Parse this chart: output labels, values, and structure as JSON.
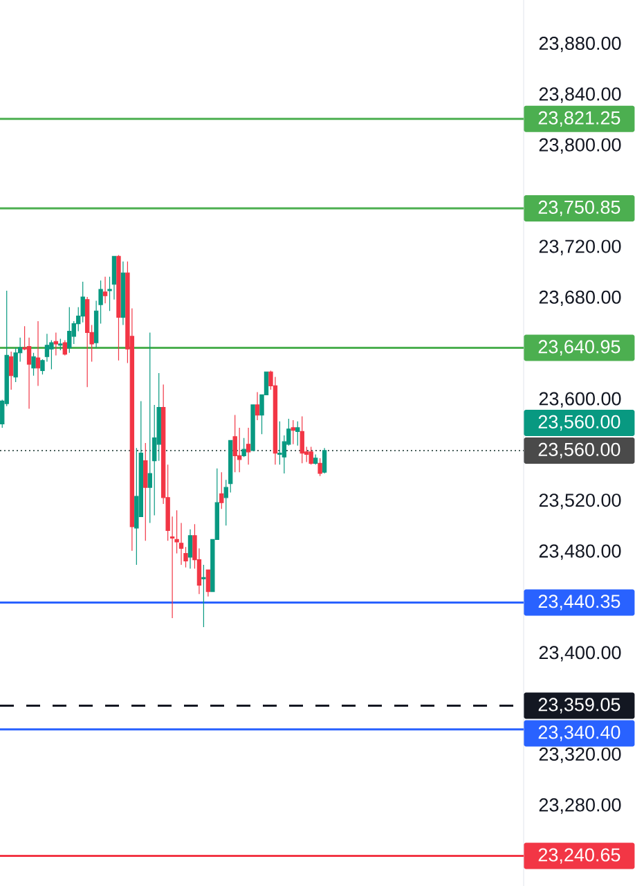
{
  "chart_data": {
    "type": "candlestick",
    "categories": [
      null,
      null,
      null,
      null,
      null,
      null,
      null,
      null,
      null,
      null,
      null,
      null,
      null,
      null,
      null,
      null,
      null,
      null,
      null,
      null,
      null,
      null,
      null,
      null,
      null,
      null,
      null,
      null,
      null,
      null,
      null,
      null,
      null,
      null,
      null,
      null,
      null,
      null,
      null,
      null,
      null,
      null,
      null,
      null,
      null,
      null,
      null,
      null,
      null,
      null,
      null,
      null,
      null,
      null,
      null,
      null,
      null,
      null,
      null,
      null,
      null,
      null,
      null,
      null,
      null,
      null,
      null,
      null,
      null,
      null,
      null,
      null,
      null,
      null,
      null,
      null,
      null,
      null,
      null,
      null,
      null,
      null,
      null,
      null,
      null,
      null,
      null,
      null,
      null,
      null,
      null,
      null,
      null,
      null,
      null,
      null,
      null,
      null,
      null,
      null,
      null,
      null,
      null,
      null,
      null,
      null,
      null,
      null,
      null,
      null,
      null,
      null,
      null,
      null,
      null,
      null,
      null
    ],
    "ohlc": [
      [
        23581,
        23600,
        23578,
        23599
      ],
      [
        23597,
        23686,
        23595,
        23635
      ],
      [
        23634,
        23638,
        23608,
        23619
      ],
      [
        23618,
        23641,
        23614,
        23637
      ],
      [
        23637,
        23649,
        23630,
        23641
      ],
      [
        23641,
        23658,
        23639,
        23640
      ],
      [
        23642,
        23649,
        23593,
        23628
      ],
      [
        23625,
        23637,
        23619,
        23634
      ],
      [
        23633,
        23662,
        23611,
        23625
      ],
      [
        23623,
        23632,
        23620,
        23631
      ],
      [
        23634,
        23652,
        23630,
        23643
      ],
      [
        23640,
        23647,
        23624,
        23645
      ],
      [
        23646,
        23653,
        23635,
        23644
      ],
      [
        23643,
        23648,
        23639,
        23644
      ],
      [
        23645,
        23647,
        23635,
        23636
      ],
      [
        23641,
        23673,
        23637,
        23654
      ],
      [
        23650,
        23662,
        23644,
        23660
      ],
      [
        23660,
        23673,
        23654,
        23666
      ],
      [
        23666,
        23693,
        23661,
        23681
      ],
      [
        23679,
        23681,
        23610,
        23653
      ],
      [
        23653,
        23659,
        23630,
        23644
      ],
      [
        23645,
        23678,
        23641,
        23670
      ],
      [
        23675,
        23694,
        23660,
        23687
      ],
      [
        23685,
        23697,
        23676,
        23682
      ],
      [
        23686,
        23697,
        23670,
        23687
      ],
      [
        23691,
        23713,
        23679,
        23713
      ],
      [
        23713,
        23714,
        23631,
        23665
      ],
      [
        23665,
        23709,
        23659,
        23700
      ],
      [
        23700,
        23709,
        23629,
        23640
      ],
      [
        23650,
        23672,
        23481,
        23500
      ],
      [
        23499,
        23562,
        23470,
        23524
      ],
      [
        23508,
        23599,
        23508,
        23558
      ],
      [
        23552,
        23566,
        23489,
        23531
      ],
      [
        23531,
        23653,
        23503,
        23542
      ],
      [
        23552,
        23596,
        23509,
        23570
      ],
      [
        23565,
        23621,
        23552,
        23594
      ],
      [
        23594,
        23612,
        23518,
        23523
      ],
      [
        23523,
        23549,
        23489,
        23497
      ],
      [
        23492,
        23508,
        23428,
        23491
      ],
      [
        23490,
        23513,
        23479,
        23488
      ],
      [
        23487,
        23503,
        23470,
        23483
      ],
      [
        23479,
        23484,
        23468,
        23473
      ],
      [
        23476,
        23498,
        23467,
        23493
      ],
      [
        23493,
        23502,
        23467,
        23474
      ],
      [
        23474,
        23483,
        23447,
        23454
      ],
      [
        23459,
        23470,
        23421,
        23460
      ],
      [
        23466,
        23466,
        23445,
        23449
      ],
      [
        23449,
        23490,
        23449,
        23490
      ],
      [
        23490,
        23546,
        23490,
        23519
      ],
      [
        23526,
        23543,
        23514,
        23519
      ],
      [
        23523,
        23537,
        23501,
        23531
      ],
      [
        23534,
        23568,
        23527,
        23568
      ],
      [
        23571,
        23588,
        23543,
        23556
      ],
      [
        23556,
        23578,
        23543,
        23553
      ],
      [
        23556,
        23570,
        23555,
        23561
      ],
      [
        23565,
        23578,
        23549,
        23559
      ],
      [
        23560,
        23596,
        23560,
        23596
      ],
      [
        23596,
        23606,
        23584,
        23588
      ],
      [
        23588,
        23604,
        23573,
        23604
      ],
      [
        23604,
        23622,
        23604,
        23622
      ],
      [
        23622,
        23623,
        23608,
        23611
      ],
      [
        23611,
        23618,
        23549,
        23558
      ],
      [
        23557,
        23583,
        23549,
        23558
      ],
      [
        23555,
        23572,
        23542,
        23567
      ],
      [
        23565,
        23585,
        23564,
        23577
      ],
      [
        23578,
        23584,
        23565,
        23576
      ],
      [
        23575,
        23583,
        23564,
        23578
      ],
      [
        23575,
        23587,
        23550,
        23558
      ],
      [
        23559,
        23563,
        23551,
        23557
      ],
      [
        23559,
        23563,
        23549,
        23550
      ],
      [
        23550,
        23557,
        23549,
        23554
      ],
      [
        23550,
        23554,
        23540,
        23542
      ],
      [
        23543,
        23562,
        23542,
        23560
      ],
      null,
      null,
      null,
      null,
      null,
      null,
      null,
      null,
      null,
      null,
      null,
      null,
      null,
      null,
      null,
      null,
      null,
      null,
      null,
      null,
      null,
      null,
      null,
      null,
      null,
      null,
      null,
      null,
      null,
      null,
      null,
      null,
      null,
      null,
      null,
      null,
      null,
      null,
      null,
      null,
      null,
      null,
      null,
      null
    ],
    "colors": [
      "#089981",
      "#089981",
      "#f23645",
      "#089981",
      "#089981",
      "#f23645",
      "#f23645",
      "#089981",
      "#f23645",
      "#089981",
      "#089981",
      "#089981",
      "#f23645",
      "#089981",
      "#f23645",
      "#089981",
      "#089981",
      "#089981",
      "#089981",
      "#f23645",
      "#f23645",
      "#089981",
      "#089981",
      "#f23645",
      "#089981",
      "#089981",
      "#f23645",
      "#089981",
      "#f23645",
      "#f23645",
      "#089981",
      "#089981",
      "#f23645",
      "#089981",
      "#089981",
      "#089981",
      "#f23645",
      "#f23645",
      "#f23645",
      "#f23645",
      "#f23645",
      "#f23645",
      "#089981",
      "#f23645",
      "#f23645",
      "#089981",
      "#f23645",
      "#089981",
      "#089981",
      "#f23645",
      "#089981",
      "#089981",
      "#f23645",
      "#f23645",
      "#089981",
      "#f23645",
      "#089981",
      "#f23645",
      "#089981",
      "#089981",
      "#f23645",
      "#f23645",
      "#089981",
      "#089981",
      "#089981",
      "#f23645",
      "#089981",
      "#f23645",
      "#f23645",
      "#f23645",
      "#089981",
      "#f23645",
      "#089981",
      null,
      null,
      null,
      null,
      null,
      null,
      null,
      null,
      null,
      null,
      null,
      null,
      null,
      null,
      null,
      null,
      null,
      null,
      null,
      null,
      null,
      null,
      null,
      null,
      null,
      null,
      null,
      null,
      null,
      null,
      null,
      null,
      null,
      null,
      null,
      null,
      null,
      null,
      null,
      null,
      null,
      null,
      null,
      null
    ],
    "ylim": [
      23217,
      23915
    ],
    "yticks": [
      {
        "value": 23280,
        "label": "23,280.00"
      },
      {
        "value": 23320,
        "label": "23,320.00"
      },
      {
        "value": 23400,
        "label": "23,400.00"
      },
      {
        "value": 23480,
        "label": "23,480.00"
      },
      {
        "value": 23520,
        "label": "23,520.00"
      },
      {
        "value": 23600,
        "label": "23,600.00"
      },
      {
        "value": 23680,
        "label": "23,680.00"
      },
      {
        "value": 23720,
        "label": "23,720.00"
      },
      {
        "value": 23800,
        "label": "23,800.00"
      },
      {
        "value": 23840,
        "label": "23,840.00"
      },
      {
        "value": 23880,
        "label": "23,880.00"
      }
    ],
    "tick_labels": "y",
    "ref_lines": [
      {
        "axis": "y",
        "value": 23821.25,
        "label": "23,821.25",
        "color": "#4caf50",
        "line_style": "solid"
      },
      {
        "axis": "y",
        "value": 23750.85,
        "label": "23,750.85",
        "color": "#4caf50",
        "line_style": "solid"
      },
      {
        "axis": "y",
        "value": 23640.95,
        "label": "23,640.95",
        "color": "#4caf50",
        "line_style": "solid"
      },
      {
        "axis": "y",
        "value": 23560,
        "label": "23,560.00",
        "color": "#4a4a4a",
        "line_style": "dotted"
      },
      {
        "axis": "y",
        "value": 23560,
        "label": "23,560.00",
        "color": "#089981",
        "line_style": "dotted"
      },
      {
        "axis": "y",
        "value": 23440.35,
        "label": "23,440.35",
        "color": "#2962ff",
        "line_style": "solid"
      },
      {
        "axis": "y",
        "value": 23359.05,
        "label": "23,359.05",
        "color": "#131722",
        "line_style": "dashed"
      },
      {
        "axis": "y",
        "value": 23340.4,
        "label": "23,340.40",
        "color": "#2962ff",
        "line_style": "solid"
      },
      {
        "axis": "y",
        "value": 23240.65,
        "label": "23,240.65",
        "color": "#f23645",
        "line_style": "solid"
      }
    ]
  }
}
